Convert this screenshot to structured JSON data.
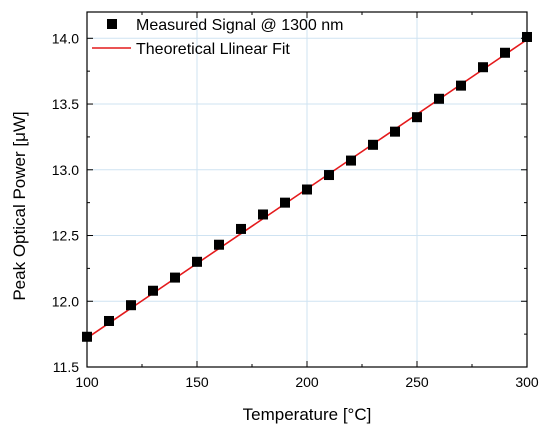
{
  "chart_data": {
    "type": "scatter",
    "xlabel": "Temperature [°C]",
    "ylabel": "Peak Optical Power [μW]",
    "xlim": [
      100,
      300
    ],
    "ylim": [
      11.5,
      14.2
    ],
    "x_ticks": [
      100,
      150,
      200,
      250,
      300
    ],
    "x_tick_labels": [
      "100",
      "150",
      "200",
      "250",
      "300"
    ],
    "y_ticks": [
      11.5,
      12.0,
      12.5,
      13.0,
      13.5,
      14.0
    ],
    "y_tick_labels": [
      "11.5",
      "12.0",
      "12.5",
      "13.0",
      "13.5",
      "14.0"
    ],
    "grid": true,
    "legend_position": "top-left",
    "series": [
      {
        "name": "Measured Signal @ 1300 nm",
        "style": "square-markers",
        "color": "#000000",
        "x": [
          100,
          110,
          120,
          130,
          140,
          150,
          160,
          170,
          180,
          190,
          200,
          210,
          220,
          230,
          240,
          250,
          260,
          270,
          280,
          290,
          300
        ],
        "y": [
          11.73,
          11.85,
          11.97,
          12.08,
          12.18,
          12.3,
          12.43,
          12.55,
          12.66,
          12.75,
          12.85,
          12.96,
          13.07,
          13.19,
          13.29,
          13.4,
          13.54,
          13.64,
          13.78,
          13.89,
          14.01
        ]
      },
      {
        "name": "Theoretical Llinear Fit",
        "style": "line",
        "color": "#e41a1c",
        "x": [
          100,
          300
        ],
        "y": [
          11.72,
          13.99
        ]
      }
    ]
  }
}
